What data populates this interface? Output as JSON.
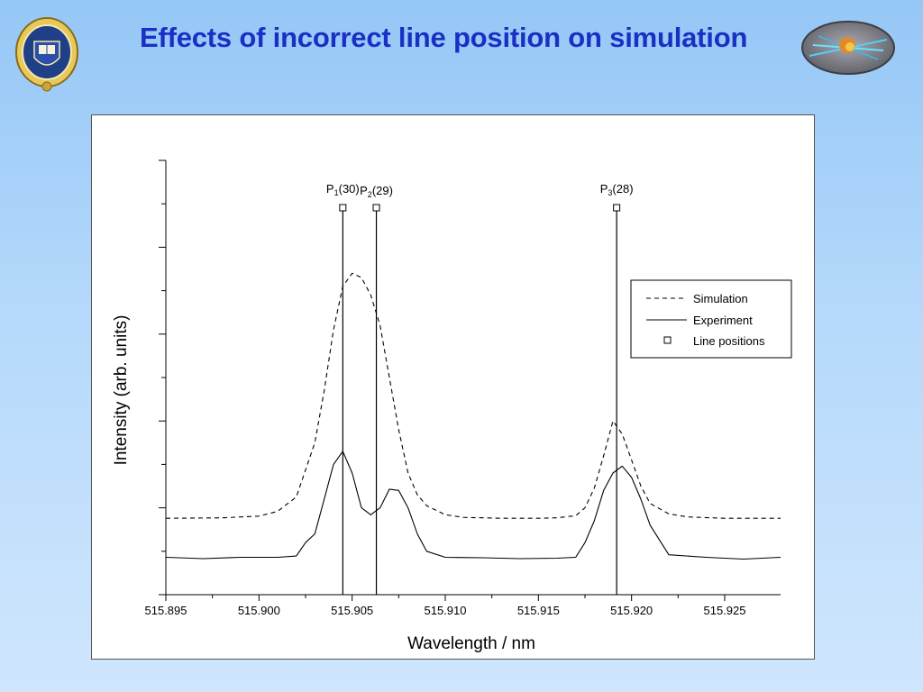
{
  "slide": {
    "title": "Effects of incorrect line position on simulation",
    "crest_icon": "university-crest-icon",
    "emblem_icon": "collision-emblem-icon"
  },
  "chart_data": {
    "type": "line",
    "xlabel": "Wavelength / nm",
    "ylabel": "Intensity (arb. units)",
    "xlim": [
      515.895,
      515.928
    ],
    "ylim": [
      0,
      100
    ],
    "x_ticks": [
      "515.895",
      "515.900",
      "515.905",
      "515.910",
      "515.915",
      "515.920",
      "515.925"
    ],
    "y_tick_labels_shown": false,
    "grid": false,
    "legend": {
      "position": "right",
      "entries": [
        "Simulation",
        "Experiment",
        "Line positions"
      ]
    },
    "series": [
      {
        "name": "Simulation",
        "style": "dashed",
        "x": [
          515.895,
          515.898,
          515.9,
          515.901,
          515.902,
          515.903,
          515.9035,
          515.904,
          515.9045,
          515.905,
          515.9055,
          515.906,
          515.9065,
          515.907,
          515.9075,
          515.908,
          515.9085,
          515.909,
          515.91,
          515.911,
          515.913,
          515.915,
          515.916,
          515.917,
          515.9175,
          515.918,
          515.9185,
          515.919,
          515.9195,
          515.92,
          515.9205,
          515.921,
          515.922,
          515.923,
          515.925,
          515.928
        ],
        "values": [
          17.6,
          17.7,
          18.1,
          19.2,
          22.5,
          35,
          47,
          61,
          71,
          74,
          73,
          69,
          62,
          50,
          38,
          28,
          23,
          20.5,
          18.4,
          17.8,
          17.6,
          17.6,
          17.7,
          18.2,
          20,
          24.5,
          32,
          40,
          37,
          31,
          25,
          21,
          18.6,
          17.9,
          17.6,
          17.6
        ]
      },
      {
        "name": "Experiment",
        "style": "solid",
        "x": [
          515.895,
          515.897,
          515.899,
          515.901,
          515.902,
          515.9025,
          515.903,
          515.9035,
          515.904,
          515.9045,
          515.905,
          515.9055,
          515.906,
          515.9065,
          515.907,
          515.9075,
          515.908,
          515.9085,
          515.909,
          515.91,
          515.912,
          515.914,
          515.916,
          515.917,
          515.9175,
          515.918,
          515.9185,
          515.919,
          515.9195,
          515.92,
          515.9205,
          515.921,
          515.922,
          515.924,
          515.926,
          515.928
        ],
        "values": [
          8.6,
          8.3,
          8.6,
          8.6,
          8.9,
          12,
          14,
          22,
          30,
          33,
          28,
          20,
          18.4,
          20,
          24.3,
          24,
          20,
          14,
          10,
          8.6,
          8.5,
          8.3,
          8.4,
          8.6,
          12,
          17,
          24,
          28,
          29.6,
          27,
          22,
          16,
          9.2,
          8.6,
          8.2,
          8.6
        ]
      }
    ],
    "line_positions": [
      {
        "label": "P",
        "sub": "1",
        "suffix": "(30)",
        "x": 515.9045
      },
      {
        "label": "P",
        "sub": "2",
        "suffix": "(29)",
        "x": 515.9063
      },
      {
        "label": "P",
        "sub": "3",
        "suffix": "(28)",
        "x": 515.9192
      }
    ]
  }
}
